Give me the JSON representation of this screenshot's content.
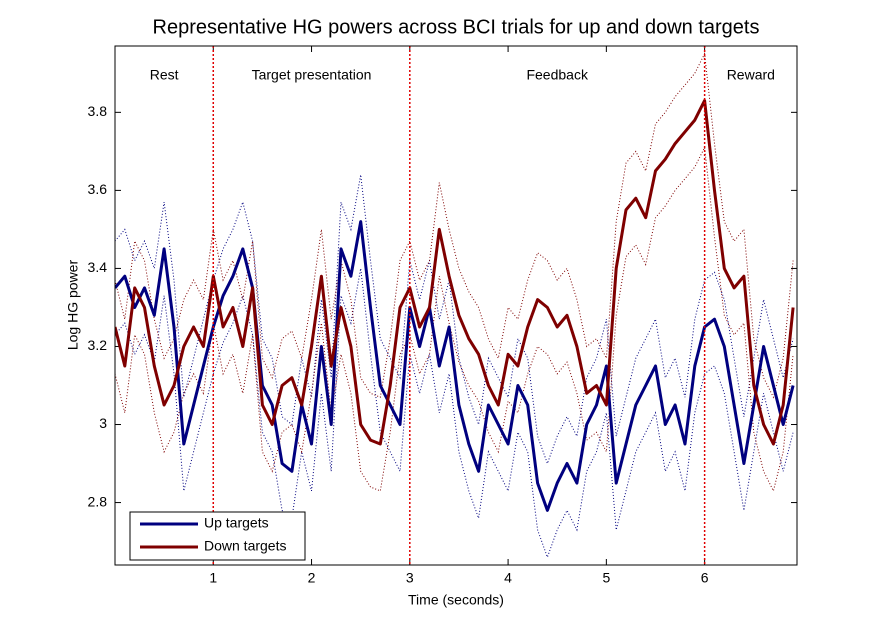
{
  "chart_data": {
    "type": "line",
    "title": "Representative HG powers across BCI trials for up and down targets",
    "x_label": "Time (seconds)",
    "y_label": "Log HG power",
    "xlim": [
      0,
      6.94
    ],
    "ylim": [
      2.64,
      3.97
    ],
    "xticks": [
      1,
      2,
      3,
      4,
      5,
      6
    ],
    "yticks": [
      2.8,
      3,
      3.2,
      3.4,
      3.6,
      3.8
    ],
    "vlines": [
      1,
      3,
      6
    ],
    "vline_color": "#e00000",
    "phases": [
      "Rest",
      "Target presentation",
      "Feedback",
      "Reward"
    ],
    "legend": "lower left",
    "x": [
      0,
      0.1,
      0.2,
      0.3,
      0.4,
      0.5,
      0.6,
      0.7,
      0.8,
      0.9,
      1,
      1.1,
      1.2,
      1.3,
      1.4,
      1.5,
      1.6,
      1.7,
      1.8,
      1.9,
      2,
      2.1,
      2.2,
      2.3,
      2.4,
      2.5,
      2.6,
      2.7,
      2.8,
      2.9,
      3,
      3.1,
      3.2,
      3.3,
      3.4,
      3.5,
      3.6,
      3.7,
      3.8,
      3.9,
      4,
      4.1,
      4.2,
      4.3,
      4.4,
      4.5,
      4.6,
      4.7,
      4.8,
      4.9,
      5,
      5.1,
      5.2,
      5.3,
      5.4,
      5.5,
      5.6,
      5.7,
      5.8,
      5.9,
      6,
      6.1,
      6.2,
      6.3,
      6.4,
      6.5,
      6.6,
      6.7,
      6.8,
      6.9
    ],
    "series": [
      {
        "name": "Up targets",
        "color": "#00007f",
        "values": [
          3.35,
          3.38,
          3.3,
          3.35,
          3.28,
          3.45,
          3.25,
          2.95,
          3.05,
          3.15,
          3.25,
          3.33,
          3.38,
          3.45,
          3.35,
          3.1,
          3.05,
          2.9,
          2.88,
          3.05,
          2.95,
          3.2,
          3.0,
          3.45,
          3.38,
          3.52,
          3.3,
          3.1,
          3.05,
          3.0,
          3.3,
          3.2,
          3.3,
          3.15,
          3.25,
          3.05,
          2.95,
          2.88,
          3.05,
          3.0,
          2.95,
          3.1,
          3.05,
          2.85,
          2.78,
          2.85,
          2.9,
          2.85,
          3.0,
          3.05,
          3.15,
          2.85,
          2.95,
          3.05,
          3.1,
          3.15,
          3.0,
          3.05,
          2.95,
          3.15,
          3.25,
          3.27,
          3.2,
          3.05,
          2.9,
          3.05,
          3.2,
          3.1,
          3.0,
          3.1
        ],
        "upper": [
          3.47,
          3.5,
          3.42,
          3.47,
          3.4,
          3.57,
          3.37,
          3.07,
          3.17,
          3.27,
          3.37,
          3.45,
          3.5,
          3.57,
          3.47,
          3.22,
          3.17,
          3.02,
          3.0,
          3.17,
          3.07,
          3.32,
          3.12,
          3.57,
          3.5,
          3.64,
          3.42,
          3.22,
          3.17,
          3.12,
          3.42,
          3.32,
          3.42,
          3.27,
          3.37,
          3.17,
          3.07,
          3.0,
          3.17,
          3.12,
          3.07,
          3.22,
          3.17,
          2.97,
          2.9,
          2.97,
          3.02,
          2.97,
          3.12,
          3.17,
          3.27,
          2.97,
          3.07,
          3.17,
          3.22,
          3.27,
          3.12,
          3.17,
          3.07,
          3.27,
          3.37,
          3.39,
          3.32,
          3.17,
          3.02,
          3.17,
          3.32,
          3.22,
          3.12,
          3.22
        ],
        "lower": [
          3.23,
          3.26,
          3.18,
          3.23,
          3.16,
          3.33,
          3.13,
          2.83,
          2.93,
          3.03,
          3.13,
          3.21,
          3.26,
          3.33,
          3.23,
          2.98,
          2.93,
          2.78,
          2.76,
          2.93,
          2.83,
          3.08,
          2.88,
          3.33,
          3.26,
          3.4,
          3.18,
          2.98,
          2.93,
          2.88,
          3.18,
          3.08,
          3.18,
          3.03,
          3.13,
          2.93,
          2.83,
          2.76,
          2.93,
          2.88,
          2.83,
          2.98,
          2.93,
          2.73,
          2.66,
          2.73,
          2.78,
          2.73,
          2.88,
          2.93,
          3.03,
          2.73,
          2.83,
          2.93,
          2.98,
          3.03,
          2.88,
          2.93,
          2.83,
          3.03,
          3.13,
          3.15,
          3.08,
          2.93,
          2.78,
          2.93,
          3.08,
          2.98,
          2.88,
          2.98
        ]
      },
      {
        "name": "Down targets",
        "color": "#7f0000",
        "values": [
          3.25,
          3.15,
          3.35,
          3.3,
          3.15,
          3.05,
          3.1,
          3.2,
          3.25,
          3.2,
          3.38,
          3.25,
          3.3,
          3.2,
          3.35,
          3.05,
          3.0,
          3.1,
          3.12,
          3.05,
          3.2,
          3.38,
          3.15,
          3.3,
          3.2,
          3.0,
          2.96,
          2.95,
          3.1,
          3.3,
          3.35,
          3.25,
          3.3,
          3.5,
          3.38,
          3.28,
          3.22,
          3.18,
          3.1,
          3.05,
          3.18,
          3.15,
          3.25,
          3.32,
          3.3,
          3.25,
          3.28,
          3.2,
          3.08,
          3.1,
          3.05,
          3.4,
          3.55,
          3.58,
          3.53,
          3.65,
          3.68,
          3.72,
          3.75,
          3.78,
          3.83,
          3.6,
          3.4,
          3.35,
          3.38,
          3.1,
          3.0,
          2.95,
          3.05,
          3.3
        ],
        "upper": [
          3.37,
          3.27,
          3.47,
          3.42,
          3.27,
          3.17,
          3.22,
          3.32,
          3.37,
          3.32,
          3.5,
          3.37,
          3.42,
          3.32,
          3.47,
          3.17,
          3.12,
          3.22,
          3.24,
          3.17,
          3.32,
          3.5,
          3.27,
          3.42,
          3.32,
          3.12,
          3.08,
          3.07,
          3.22,
          3.42,
          3.47,
          3.37,
          3.42,
          3.62,
          3.5,
          3.4,
          3.34,
          3.3,
          3.22,
          3.17,
          3.3,
          3.27,
          3.37,
          3.44,
          3.42,
          3.37,
          3.4,
          3.32,
          3.2,
          3.22,
          3.17,
          3.52,
          3.67,
          3.7,
          3.65,
          3.77,
          3.8,
          3.84,
          3.87,
          3.9,
          3.95,
          3.72,
          3.52,
          3.47,
          3.5,
          3.22,
          3.12,
          3.07,
          3.17,
          3.42
        ],
        "lower": [
          3.13,
          3.03,
          3.23,
          3.18,
          3.03,
          2.93,
          2.98,
          3.08,
          3.13,
          3.08,
          3.26,
          3.13,
          3.18,
          3.08,
          3.23,
          2.93,
          2.88,
          2.98,
          3.0,
          2.93,
          3.08,
          3.26,
          3.03,
          3.18,
          3.08,
          2.88,
          2.84,
          2.83,
          2.98,
          3.18,
          3.23,
          3.13,
          3.18,
          3.38,
          3.26,
          3.16,
          3.1,
          3.06,
          2.98,
          2.93,
          3.06,
          3.03,
          3.13,
          3.2,
          3.18,
          3.13,
          3.16,
          3.08,
          2.96,
          2.98,
          2.93,
          3.28,
          3.43,
          3.46,
          3.41,
          3.53,
          3.56,
          3.6,
          3.63,
          3.66,
          3.71,
          3.48,
          3.28,
          3.23,
          3.26,
          2.98,
          2.88,
          2.83,
          2.93,
          3.18
        ]
      }
    ]
  }
}
